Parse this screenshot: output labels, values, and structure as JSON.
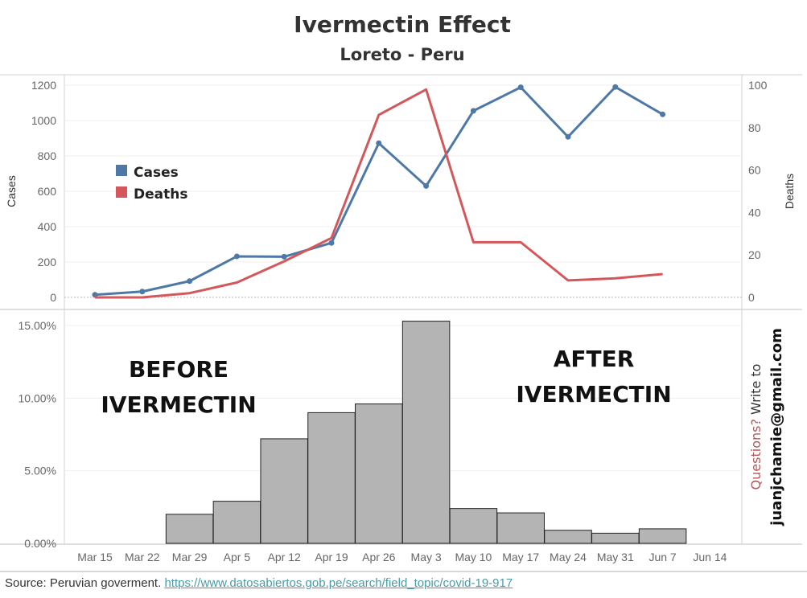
{
  "title": "Ivermectin Effect",
  "subtitle": "Loreto - Peru",
  "source": {
    "label": "Source: Peruvian goverment.",
    "link": "https://www.datosabiertos.gob.pe/search/field_topic/covid-19-917"
  },
  "contact": {
    "question": "Questions?",
    "write_to": "Write to",
    "email": "juanjchamie@gmail.com"
  },
  "colors": {
    "cases": "#4e79a7",
    "deaths": "#d4585b",
    "bars": "#b4b4b4",
    "question": "#b25a5a"
  },
  "chart_data": [
    {
      "type": "line",
      "categories": [
        "Mar 15",
        "Mar 22",
        "Mar 29",
        "Apr 5",
        "Apr 12",
        "Apr 19",
        "Apr 26",
        "May 3",
        "May 10",
        "May 17",
        "May 24",
        "May 31",
        "Jun 7",
        "Jun 14"
      ],
      "series": [
        {
          "name": "Cases",
          "axis": "left",
          "markers": true,
          "values": [
            15,
            33,
            92,
            232,
            230,
            308,
            872,
            630,
            1055,
            1188,
            908,
            1190,
            1035,
            null
          ]
        },
        {
          "name": "Deaths",
          "axis": "right",
          "markers": false,
          "values": [
            0,
            0,
            2,
            7,
            17,
            28,
            86,
            98,
            26,
            26,
            8,
            9,
            11,
            null
          ]
        }
      ],
      "ylabel": "Cases",
      "y2label": "Deaths",
      "ylim": [
        0,
        1200
      ],
      "y2lim": [
        0,
        100
      ],
      "yticks": [
        0,
        200,
        400,
        600,
        800,
        1000,
        1200
      ],
      "y2ticks": [
        0,
        20,
        40,
        60,
        80,
        100
      ],
      "legend": {
        "position": "upper-left",
        "entries": [
          "Cases",
          "Deaths"
        ]
      }
    },
    {
      "type": "bar",
      "categories": [
        "Mar 15",
        "Mar 22",
        "Mar 29",
        "Apr 5",
        "Apr 12",
        "Apr 19",
        "Apr 26",
        "May 3",
        "May 10",
        "May 17",
        "May 24",
        "May 31",
        "Jun 7",
        "Jun 14"
      ],
      "values": [
        null,
        null,
        2.0,
        2.9,
        7.2,
        9.0,
        9.6,
        15.3,
        2.4,
        2.1,
        0.9,
        0.7,
        1.0,
        null
      ],
      "ylim": [
        0,
        16
      ],
      "yticks": [
        "0.00%",
        "5.00%",
        "10.00%",
        "15.00%"
      ],
      "ytick_values": [
        0,
        5,
        10,
        15
      ],
      "annotations": [
        {
          "lines": [
            "BEFORE",
            "IVERMECTIN"
          ]
        },
        {
          "lines": [
            "AFTER",
            "IVERMECTIN"
          ]
        }
      ]
    }
  ]
}
